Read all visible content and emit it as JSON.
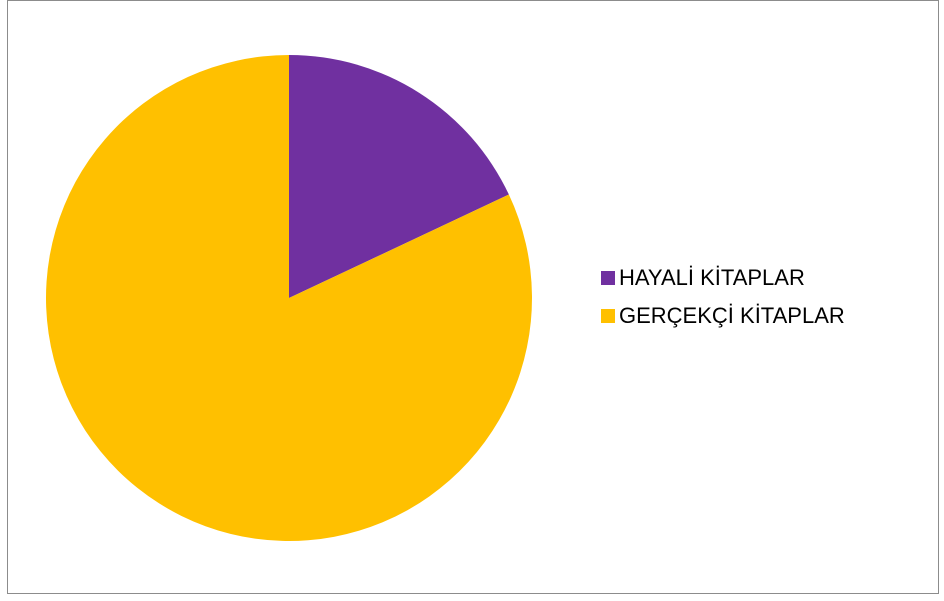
{
  "chart_data": {
    "type": "pie",
    "categories": [
      "HAYALİ KİTAPLAR",
      "GERÇEKÇİ KİTAPLAR"
    ],
    "values": [
      18,
      82
    ],
    "colors": [
      "#7030a0",
      "#ffc000"
    ],
    "legend_position": "right",
    "title": ""
  },
  "legend": {
    "items": [
      {
        "label": "HAYALİ KİTAPLAR",
        "color": "#7030a0"
      },
      {
        "label": "GERÇEKÇİ KİTAPLAR",
        "color": "#ffc000"
      }
    ]
  }
}
